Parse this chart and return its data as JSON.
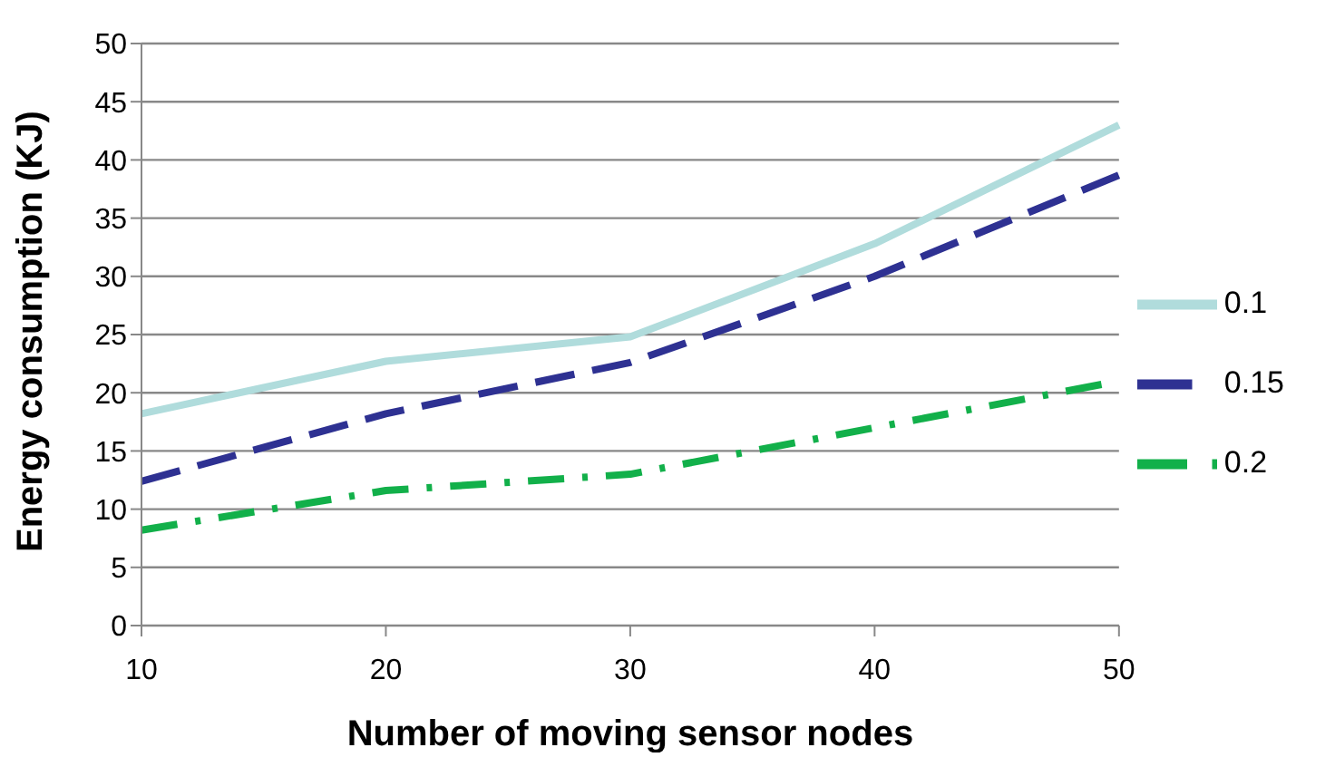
{
  "chart_data": {
    "type": "line",
    "xlabel": "Number of moving sensor nodes",
    "ylabel": "Energy consumption (KJ)",
    "categories": [
      "10",
      "20",
      "30",
      "40",
      "50"
    ],
    "series": [
      {
        "name": "0.1",
        "color": "#b0dcdc",
        "line_style": "solid",
        "values": [
          18.2,
          22.7,
          24.8,
          32.8,
          43
        ]
      },
      {
        "name": "0.15",
        "color": "#2e3192",
        "line_style": "dashed",
        "values": [
          12.4,
          18.2,
          22.6,
          30,
          38.7
        ]
      },
      {
        "name": "0.2",
        "color": "#12b04a",
        "line_style": "dashdot",
        "values": [
          8.2,
          11.6,
          13,
          17,
          21
        ]
      }
    ],
    "ylim": [
      0,
      50
    ],
    "yticks": [
      0,
      5,
      10,
      15,
      20,
      25,
      30,
      35,
      40,
      45,
      50
    ],
    "grid": "y",
    "legend": "right",
    "marker": "none"
  }
}
